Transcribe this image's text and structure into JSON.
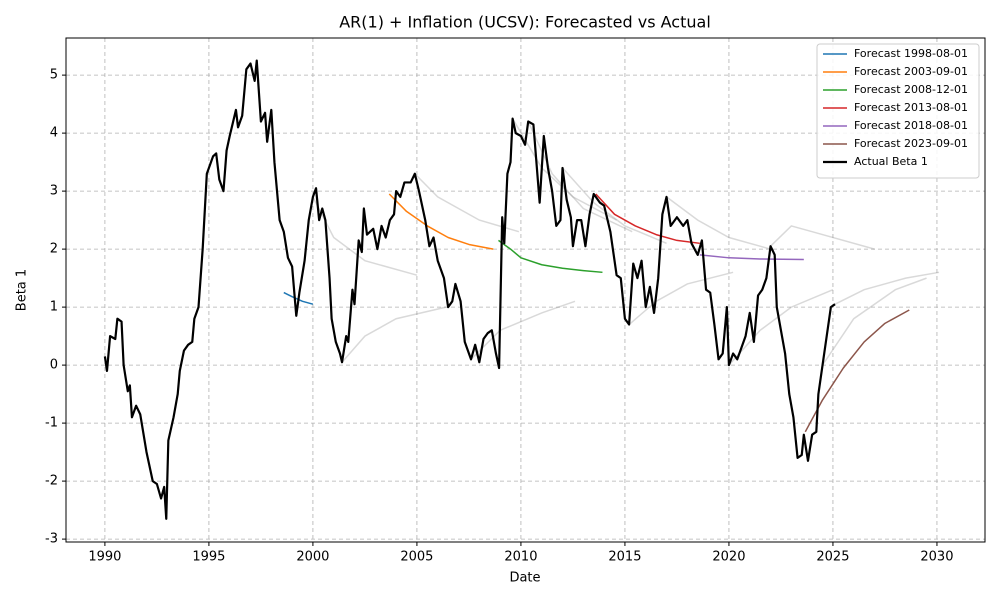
{
  "chart_data": {
    "type": "line",
    "title": "AR(1) + Inflation (UCSV): Forecasted vs Actual",
    "x_label": "Date",
    "y_label": "Beta 1",
    "xlim": [
      1988.13,
      2032.31
    ],
    "ylim": [
      -3.05,
      5.64
    ],
    "xticks": [
      1990,
      1995,
      2000,
      2005,
      2010,
      2015,
      2020,
      2025,
      2030
    ],
    "yticks": [
      -3,
      -2,
      -1,
      0,
      1,
      2,
      3,
      4,
      5
    ],
    "grid": true,
    "legend": "upper right",
    "background_color": "#808080",
    "background_forecasts": [
      {
        "x": [
          2000.0,
          2001.0,
          2002.5,
          2005.0
        ],
        "values": [
          2.9,
          2.2,
          1.8,
          1.55
        ]
      },
      {
        "x": [
          2001.4,
          2002.5,
          2004.0,
          2006.4
        ],
        "values": [
          0.05,
          0.5,
          0.8,
          1.0
        ]
      },
      {
        "x": [
          2004.9,
          2006.0,
          2008.0,
          2009.9
        ],
        "values": [
          3.3,
          2.9,
          2.5,
          2.3
        ]
      },
      {
        "x": [
          2007.6,
          2009.0,
          2011.0,
          2012.6
        ],
        "values": [
          0.1,
          0.6,
          0.9,
          1.1
        ]
      },
      {
        "x": [
          2010.35,
          2011.5,
          2013.0,
          2015.35
        ],
        "values": [
          4.2,
          3.3,
          2.7,
          2.3
        ]
      },
      {
        "x": [
          2009.6,
          2011.0,
          2012.5,
          2014.6
        ],
        "values": [
          4.25,
          3.4,
          2.9,
          2.5
        ]
      },
      {
        "x": [
          2012.0,
          2013.5,
          2015.0,
          2017.0
        ],
        "values": [
          3.4,
          2.8,
          2.4,
          2.1
        ]
      },
      {
        "x": [
          2015.2,
          2016.5,
          2018.0,
          2020.2
        ],
        "values": [
          0.7,
          1.1,
          1.4,
          1.6
        ]
      },
      {
        "x": [
          2017.0,
          2018.5,
          2020.0,
          2022.0
        ],
        "values": [
          2.9,
          2.5,
          2.2,
          2.0
        ]
      },
      {
        "x": [
          2020.0,
          2021.5,
          2023.0,
          2025.0
        ],
        "values": [
          0.0,
          0.6,
          1.0,
          1.3
        ]
      },
      {
        "x": [
          2022.0,
          2023.0,
          2024.0,
          2027.0
        ],
        "values": [
          2.05,
          2.4,
          2.3,
          2.0
        ]
      },
      {
        "x": [
          2024.5,
          2026.0,
          2028.0,
          2029.5
        ],
        "values": [
          0.0,
          0.8,
          1.3,
          1.5
        ]
      },
      {
        "x": [
          2025.1,
          2026.5,
          2028.5,
          2030.1
        ],
        "values": [
          1.05,
          1.3,
          1.5,
          1.6
        ]
      }
    ],
    "series": [
      {
        "name": "Forecast 1998-08-01",
        "color": "#1f77b4",
        "width": 1.5,
        "x": [
          1998.6,
          1999.0,
          1999.5,
          2000.0
        ],
        "values": [
          1.25,
          1.18,
          1.1,
          1.05
        ]
      },
      {
        "name": "Forecast 2003-09-01",
        "color": "#ff7f0e",
        "width": 1.5,
        "x": [
          2003.67,
          2004.5,
          2005.5,
          2006.5,
          2007.5,
          2008.67
        ],
        "values": [
          2.95,
          2.65,
          2.4,
          2.2,
          2.08,
          2.0
        ]
      },
      {
        "name": "Forecast 2008-12-01",
        "color": "#2ca02c",
        "width": 1.5,
        "x": [
          2008.92,
          2009.5,
          2010.0,
          2011.0,
          2012.0,
          2013.0,
          2013.92
        ],
        "values": [
          2.15,
          2.0,
          1.85,
          1.73,
          1.67,
          1.63,
          1.6
        ]
      },
      {
        "name": "Forecast 2013-08-01",
        "color": "#d62728",
        "width": 1.5,
        "x": [
          2013.6,
          2014.5,
          2015.5,
          2016.5,
          2017.5,
          2018.6
        ],
        "values": [
          2.95,
          2.6,
          2.4,
          2.25,
          2.15,
          2.1
        ]
      },
      {
        "name": "Forecast 2018-08-01",
        "color": "#9467bd",
        "width": 1.5,
        "x": [
          2018.6,
          2020.0,
          2021.5,
          2023.6
        ],
        "values": [
          1.9,
          1.85,
          1.83,
          1.82
        ]
      },
      {
        "name": "Forecast 2023-09-01",
        "color": "#8c564b",
        "width": 1.5,
        "x": [
          2023.67,
          2024.5,
          2025.5,
          2026.5,
          2027.5,
          2028.67
        ],
        "values": [
          -1.15,
          -0.6,
          -0.05,
          0.4,
          0.72,
          0.95
        ]
      },
      {
        "name": "Actual Beta 1",
        "color": "#000000",
        "width": 2.2,
        "x": [
          1990.0,
          1990.1,
          1990.25,
          1990.5,
          1990.6,
          1990.8,
          1990.9,
          1991.1,
          1991.2,
          1991.3,
          1991.5,
          1991.7,
          1992.0,
          1992.3,
          1992.5,
          1992.7,
          1992.85,
          1992.95,
          1993.05,
          1993.3,
          1993.5,
          1993.6,
          1993.8,
          1994.0,
          1994.2,
          1994.3,
          1994.5,
          1994.7,
          1994.9,
          1995.1,
          1995.2,
          1995.35,
          1995.5,
          1995.7,
          1995.85,
          1996.0,
          1996.3,
          1996.4,
          1996.6,
          1996.8,
          1997.0,
          1997.2,
          1997.3,
          1997.5,
          1997.7,
          1997.8,
          1998.0,
          1998.15,
          1998.4,
          1998.6,
          1998.8,
          1999.0,
          1999.2,
          1999.35,
          1999.6,
          1999.8,
          2000.0,
          2000.15,
          2000.3,
          2000.45,
          2000.6,
          2000.8,
          2000.9,
          2001.1,
          2001.3,
          2001.4,
          2001.6,
          2001.7,
          2001.9,
          2002.0,
          2002.2,
          2002.35,
          2002.45,
          2002.6,
          2002.9,
          2003.1,
          2003.3,
          2003.5,
          2003.7,
          2003.9,
          2004.0,
          2004.2,
          2004.4,
          2004.7,
          2004.9,
          2005.1,
          2005.4,
          2005.6,
          2005.8,
          2006.0,
          2006.3,
          2006.5,
          2006.7,
          2006.85,
          2007.1,
          2007.3,
          2007.6,
          2007.8,
          2008.0,
          2008.2,
          2008.4,
          2008.6,
          2008.8,
          2008.95,
          2009.1,
          2009.2,
          2009.35,
          2009.5,
          2009.6,
          2009.75,
          2010.0,
          2010.2,
          2010.35,
          2010.6,
          2010.9,
          2011.1,
          2011.3,
          2011.5,
          2011.7,
          2011.9,
          2012.0,
          2012.2,
          2012.4,
          2012.5,
          2012.7,
          2012.9,
          2013.1,
          2013.3,
          2013.5,
          2013.8,
          2014.0,
          2014.3,
          2014.6,
          2014.8,
          2015.0,
          2015.2,
          2015.4,
          2015.6,
          2015.8,
          2016.0,
          2016.2,
          2016.4,
          2016.6,
          2016.8,
          2017.0,
          2017.2,
          2017.5,
          2017.8,
          2018.0,
          2018.2,
          2018.5,
          2018.7,
          2018.9,
          2019.1,
          2019.3,
          2019.5,
          2019.7,
          2019.9,
          2020.0,
          2020.2,
          2020.4,
          2020.6,
          2020.8,
          2021.0,
          2021.2,
          2021.4,
          2021.6,
          2021.8,
          2022.0,
          2022.2,
          2022.3,
          2022.5,
          2022.7,
          2022.9,
          2023.1,
          2023.3,
          2023.5,
          2023.6,
          2023.8,
          2024.0,
          2024.2,
          2024.3,
          2024.5,
          2024.7,
          2024.9,
          2025.1
        ],
        "values": [
          0.15,
          -0.1,
          0.5,
          0.45,
          0.8,
          0.75,
          0.0,
          -0.45,
          -0.35,
          -0.9,
          -0.7,
          -0.85,
          -1.5,
          -2.0,
          -2.05,
          -2.3,
          -2.1,
          -2.65,
          -1.3,
          -0.9,
          -0.5,
          -0.1,
          0.25,
          0.35,
          0.4,
          0.8,
          1.0,
          2.0,
          3.3,
          3.5,
          3.6,
          3.65,
          3.2,
          3.0,
          3.7,
          3.95,
          4.4,
          4.1,
          4.3,
          5.1,
          5.2,
          4.9,
          5.25,
          4.2,
          4.35,
          3.85,
          4.4,
          3.5,
          2.5,
          2.3,
          1.85,
          1.7,
          0.85,
          1.25,
          1.8,
          2.5,
          2.9,
          3.05,
          2.5,
          2.7,
          2.5,
          1.5,
          0.8,
          0.4,
          0.2,
          0.05,
          0.5,
          0.4,
          1.3,
          1.05,
          2.15,
          1.95,
          2.7,
          2.25,
          2.35,
          2.0,
          2.4,
          2.2,
          2.5,
          2.6,
          3.0,
          2.9,
          3.15,
          3.15,
          3.3,
          3.0,
          2.5,
          2.05,
          2.2,
          1.8,
          1.5,
          1.0,
          1.1,
          1.4,
          1.1,
          0.4,
          0.1,
          0.35,
          0.05,
          0.45,
          0.55,
          0.6,
          0.2,
          -0.05,
          2.55,
          2.1,
          3.3,
          3.5,
          4.25,
          4.0,
          3.95,
          3.8,
          4.2,
          4.15,
          2.8,
          3.95,
          3.4,
          3.0,
          2.4,
          2.5,
          3.4,
          2.85,
          2.55,
          2.05,
          2.5,
          2.5,
          2.05,
          2.6,
          2.95,
          2.8,
          2.75,
          2.3,
          1.55,
          1.5,
          0.8,
          0.7,
          1.75,
          1.5,
          1.8,
          1.0,
          1.35,
          0.9,
          1.5,
          2.6,
          2.9,
          2.4,
          2.55,
          2.4,
          2.5,
          2.1,
          1.9,
          2.15,
          1.3,
          1.25,
          0.7,
          0.1,
          0.2,
          1.0,
          0.0,
          0.2,
          0.1,
          0.3,
          0.5,
          0.9,
          0.4,
          1.2,
          1.3,
          1.5,
          2.05,
          1.9,
          1.0,
          0.6,
          0.2,
          -0.5,
          -0.9,
          -1.6,
          -1.55,
          -1.2,
          -1.65,
          -1.2,
          -1.15,
          -0.5,
          0.0,
          0.5,
          1.0,
          1.05
        ]
      }
    ]
  }
}
